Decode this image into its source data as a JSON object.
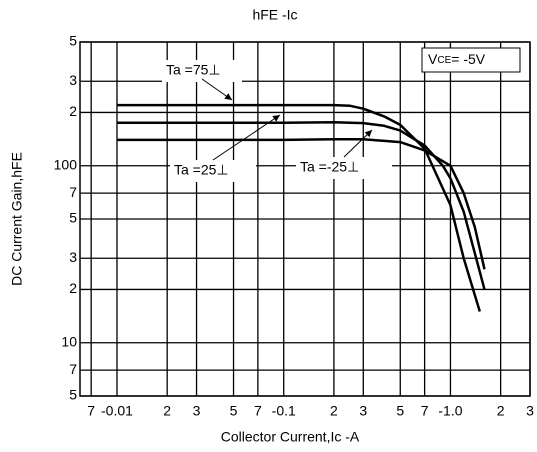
{
  "chart_data": {
    "type": "line",
    "title": "hFE -Ic",
    "x_label": "Collector Current,Ic -A",
    "y_label": "DC Current Gain,hFE",
    "x_scale": "log",
    "y_scale": "log",
    "grid": true,
    "color": "#000000",
    "xlim": [
      0.006,
      3
    ],
    "ylim": [
      5,
      500
    ],
    "xticks": [
      {
        "value": 0.007,
        "label": "7"
      },
      {
        "value": 0.01,
        "label": "-0.01"
      },
      {
        "value": 0.02,
        "label": "2"
      },
      {
        "value": 0.03,
        "label": "3"
      },
      {
        "value": 0.05,
        "label": "5"
      },
      {
        "value": 0.07,
        "label": "7"
      },
      {
        "value": 0.1,
        "label": "-0.1"
      },
      {
        "value": 0.2,
        "label": "2"
      },
      {
        "value": 0.3,
        "label": "3"
      },
      {
        "value": 0.5,
        "label": "5"
      },
      {
        "value": 0.7,
        "label": "7"
      },
      {
        "value": 1,
        "label": "-1.0"
      },
      2,
      3
    ],
    "yticks": [
      {
        "value": 500,
        "label": "5"
      },
      {
        "value": 300,
        "label": "3"
      },
      {
        "value": 200,
        "label": "2"
      },
      100,
      {
        "value": 70,
        "label": "7"
      },
      {
        "value": 50,
        "label": "5"
      },
      {
        "value": 30,
        "label": "3"
      },
      {
        "value": 20,
        "label": "2"
      },
      10,
      7,
      5
    ],
    "condition": {
      "symbol": "V",
      "subscript": "CE",
      "text": "= -5V"
    },
    "series": [
      {
        "name": "Ta =75⊥",
        "color": "#000000",
        "x": [
          0.01,
          0.1,
          0.2,
          0.25,
          0.3,
          0.4,
          0.5,
          0.7,
          1.0,
          1.2,
          1.5
        ],
        "values": [
          220,
          220,
          220,
          218,
          210,
          190,
          170,
          125,
          60,
          30,
          15
        ]
      },
      {
        "name": "Ta =25⊥",
        "color": "#000000",
        "x": [
          0.01,
          0.1,
          0.2,
          0.3,
          0.4,
          0.5,
          0.7,
          0.9,
          1.0,
          1.2,
          1.6
        ],
        "values": [
          175,
          175,
          176,
          174,
          168,
          158,
          130,
          100,
          85,
          55,
          20
        ]
      },
      {
        "name": "Ta =-25⊥",
        "color": "#000000",
        "x": [
          0.01,
          0.1,
          0.2,
          0.3,
          0.5,
          0.7,
          1.0,
          1.2,
          1.4,
          1.6
        ],
        "values": [
          140,
          140,
          141,
          141,
          136,
          122,
          100,
          70,
          45,
          26
        ]
      }
    ]
  }
}
